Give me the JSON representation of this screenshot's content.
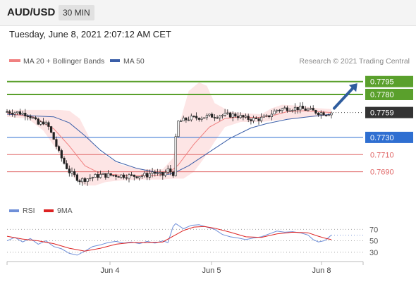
{
  "header": {
    "symbol": "AUD/USD",
    "timeframe": "30 MIN"
  },
  "timestamp": "Tuesday, June 8, 2021 2:07:12 AM CET",
  "copyright": "Research © 2021 Trading Central",
  "colors": {
    "candle": "#222222",
    "ma20": "#f08080",
    "bollinger_fill": "#fde0e0",
    "ma50": "#3a5ea8",
    "resistance": "#5aa02c",
    "support": "#e06666",
    "pivot": "#2f6fd1",
    "last_price": "#333333",
    "arrow": "#2f5d9e",
    "rsi": "#6f8fd8",
    "rsi_ma": "#dd2222"
  },
  "chart_data": [
    {
      "type": "candlestick",
      "legend": [
        {
          "name": "MA 20 + Bollinger Bands",
          "color": "#f08080"
        },
        {
          "name": "MA 50",
          "color": "#3a5ea8"
        }
      ],
      "legend_position": "top-left",
      "x_ticks": [
        "Jun 4",
        "Jun 5",
        "Jun 8"
      ],
      "ylim": [
        0.767,
        0.7812
      ],
      "price_path": [
        [
          0,
          0.776
        ],
        [
          4,
          0.7759
        ],
        [
          8,
          0.7757
        ],
        [
          10,
          0.7752
        ],
        [
          12,
          0.7745
        ],
        [
          14,
          0.7748
        ],
        [
          16,
          0.7742
        ],
        [
          18,
          0.7728
        ],
        [
          20,
          0.7712
        ],
        [
          22,
          0.77
        ],
        [
          24,
          0.769
        ],
        [
          26,
          0.7685
        ],
        [
          28,
          0.768
        ],
        [
          32,
          0.7683
        ],
        [
          36,
          0.7686
        ],
        [
          42,
          0.7686
        ],
        [
          48,
          0.7685
        ],
        [
          54,
          0.7686
        ],
        [
          56,
          0.769
        ],
        [
          58,
          0.7687
        ],
        [
          60,
          0.7686
        ],
        [
          62,
          0.7692
        ],
        [
          64,
          0.7688
        ],
        [
          65,
          0.7728
        ],
        [
          66,
          0.7748
        ],
        [
          70,
          0.7752
        ],
        [
          76,
          0.7754
        ],
        [
          82,
          0.7756
        ],
        [
          88,
          0.7756
        ],
        [
          92,
          0.7752
        ],
        [
          96,
          0.7751
        ],
        [
          100,
          0.7753
        ],
        [
          102,
          0.7758
        ],
        [
          104,
          0.7762
        ],
        [
          108,
          0.7764
        ],
        [
          112,
          0.7764
        ],
        [
          116,
          0.7762
        ],
        [
          120,
          0.7759
        ],
        [
          123,
          0.7758
        ],
        [
          125,
          0.7759
        ]
      ],
      "ma20_path": [
        [
          0,
          0.7758
        ],
        [
          10,
          0.7754
        ],
        [
          18,
          0.774
        ],
        [
          24,
          0.772
        ],
        [
          30,
          0.7697
        ],
        [
          36,
          0.7688
        ],
        [
          44,
          0.7686
        ],
        [
          52,
          0.7686
        ],
        [
          58,
          0.7686
        ],
        [
          62,
          0.7688
        ],
        [
          66,
          0.7698
        ],
        [
          72,
          0.7722
        ],
        [
          78,
          0.7742
        ],
        [
          84,
          0.7752
        ],
        [
          90,
          0.7754
        ],
        [
          96,
          0.7753
        ],
        [
          102,
          0.7755
        ],
        [
          108,
          0.776
        ],
        [
          114,
          0.7761
        ],
        [
          120,
          0.776
        ],
        [
          125,
          0.7759
        ]
      ],
      "bollinger_upper": [
        [
          0,
          0.7762
        ],
        [
          8,
          0.7762
        ],
        [
          14,
          0.7762
        ],
        [
          20,
          0.7762
        ],
        [
          24,
          0.7761
        ],
        [
          28,
          0.7752
        ],
        [
          32,
          0.7728
        ],
        [
          36,
          0.7712
        ],
        [
          44,
          0.7698
        ],
        [
          52,
          0.7693
        ],
        [
          60,
          0.7693
        ],
        [
          64,
          0.7706
        ],
        [
          67,
          0.7752
        ],
        [
          70,
          0.7784
        ],
        [
          74,
          0.7794
        ],
        [
          77,
          0.779
        ],
        [
          80,
          0.777
        ],
        [
          86,
          0.776
        ],
        [
          92,
          0.7758
        ],
        [
          98,
          0.7757
        ],
        [
          102,
          0.7764
        ],
        [
          106,
          0.7768
        ],
        [
          112,
          0.7767
        ],
        [
          120,
          0.7764
        ],
        [
          125,
          0.7763
        ]
      ],
      "bollinger_lower": [
        [
          0,
          0.7754
        ],
        [
          8,
          0.7752
        ],
        [
          14,
          0.7738
        ],
        [
          20,
          0.7712
        ],
        [
          26,
          0.7682
        ],
        [
          30,
          0.7674
        ],
        [
          34,
          0.7674
        ],
        [
          38,
          0.7678
        ],
        [
          44,
          0.768
        ],
        [
          52,
          0.7681
        ],
        [
          60,
          0.7681
        ],
        [
          64,
          0.7682
        ],
        [
          68,
          0.7682
        ],
        [
          72,
          0.769
        ],
        [
          76,
          0.7706
        ],
        [
          80,
          0.7725
        ],
        [
          84,
          0.7742
        ],
        [
          90,
          0.7748
        ],
        [
          98,
          0.7748
        ],
        [
          104,
          0.775
        ],
        [
          110,
          0.7752
        ],
        [
          118,
          0.7754
        ],
        [
          125,
          0.7755
        ]
      ],
      "ma50_path": [
        [
          0,
          0.7757
        ],
        [
          10,
          0.7755
        ],
        [
          18,
          0.7754
        ],
        [
          24,
          0.7747
        ],
        [
          30,
          0.7732
        ],
        [
          36,
          0.7715
        ],
        [
          42,
          0.7702
        ],
        [
          50,
          0.7694
        ],
        [
          58,
          0.7689
        ],
        [
          62,
          0.7687
        ],
        [
          64,
          0.7688
        ],
        [
          70,
          0.7697
        ],
        [
          78,
          0.7713
        ],
        [
          86,
          0.7729
        ],
        [
          94,
          0.7741
        ],
        [
          100,
          0.7746
        ],
        [
          108,
          0.7751
        ],
        [
          116,
          0.7754
        ],
        [
          125,
          0.7757
        ]
      ],
      "levels": [
        {
          "label": "0.7795",
          "value": 0.7795,
          "role": "resistance"
        },
        {
          "label": "0.7780",
          "value": 0.778,
          "role": "resistance"
        },
        {
          "label": "0.7759",
          "value": 0.7759,
          "role": "last_price"
        },
        {
          "label": "0.7730",
          "value": 0.773,
          "role": "pivot"
        },
        {
          "label": "0.7710",
          "value": 0.771,
          "role": "support"
        },
        {
          "label": "0.7690",
          "value": 0.769,
          "role": "support"
        }
      ],
      "projection_arrow": {
        "from": [
          125,
          0.7759
        ],
        "to": [
          135,
          0.7793
        ]
      }
    },
    {
      "type": "line",
      "legend": [
        {
          "name": "RSI",
          "color": "#6f8fd8"
        },
        {
          "name": "9MA",
          "color": "#dd2222"
        }
      ],
      "legend_position": "top-left",
      "y_ticks": [
        70,
        50,
        30
      ],
      "ylim": [
        15,
        95
      ],
      "rsi_path": [
        [
          0,
          50
        ],
        [
          3,
          56
        ],
        [
          6,
          48
        ],
        [
          9,
          54
        ],
        [
          12,
          44
        ],
        [
          15,
          50
        ],
        [
          18,
          40
        ],
        [
          21,
          36
        ],
        [
          24,
          28
        ],
        [
          27,
          25
        ],
        [
          30,
          32
        ],
        [
          33,
          40
        ],
        [
          36,
          43
        ],
        [
          39,
          47
        ],
        [
          42,
          49
        ],
        [
          45,
          46
        ],
        [
          48,
          48
        ],
        [
          51,
          45
        ],
        [
          54,
          49
        ],
        [
          57,
          46
        ],
        [
          60,
          50
        ],
        [
          62,
          47
        ],
        [
          64,
          75
        ],
        [
          65,
          80
        ],
        [
          68,
          71
        ],
        [
          71,
          77
        ],
        [
          74,
          78
        ],
        [
          77,
          74
        ],
        [
          80,
          70
        ],
        [
          83,
          61
        ],
        [
          86,
          57
        ],
        [
          89,
          55
        ],
        [
          92,
          52
        ],
        [
          95,
          55
        ],
        [
          98,
          57
        ],
        [
          101,
          62
        ],
        [
          104,
          67
        ],
        [
          107,
          65
        ],
        [
          110,
          66
        ],
        [
          113,
          64
        ],
        [
          116,
          60
        ],
        [
          118,
          52
        ],
        [
          120,
          48
        ],
        [
          122,
          50
        ],
        [
          123,
          52
        ],
        [
          125,
          60
        ]
      ],
      "rsi_ma_path": [
        [
          0,
          58
        ],
        [
          6,
          53
        ],
        [
          12,
          50
        ],
        [
          18,
          45
        ],
        [
          24,
          37
        ],
        [
          30,
          32
        ],
        [
          36,
          37
        ],
        [
          42,
          44
        ],
        [
          48,
          47
        ],
        [
          54,
          47
        ],
        [
          60,
          48
        ],
        [
          64,
          58
        ],
        [
          68,
          68
        ],
        [
          72,
          74
        ],
        [
          76,
          75
        ],
        [
          80,
          72
        ],
        [
          86,
          65
        ],
        [
          92,
          57
        ],
        [
          98,
          56
        ],
        [
          104,
          62
        ],
        [
          110,
          65
        ],
        [
          116,
          64
        ],
        [
          120,
          58
        ],
        [
          123,
          54
        ],
        [
          125,
          52
        ]
      ]
    }
  ]
}
